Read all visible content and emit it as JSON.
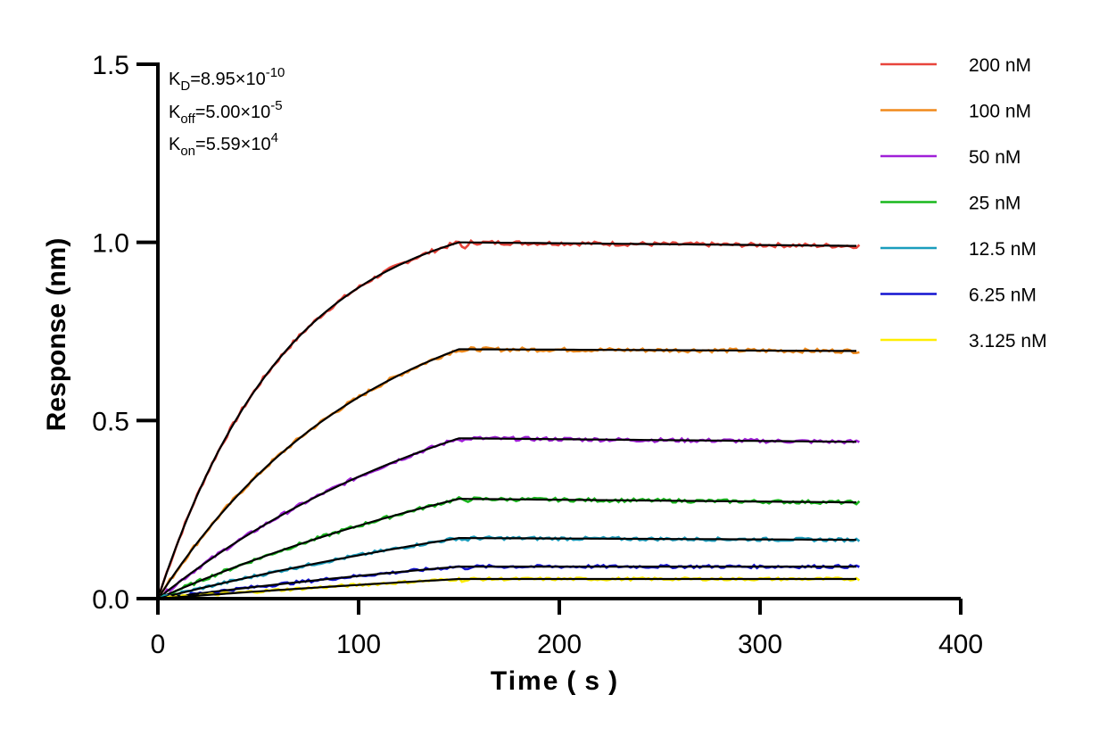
{
  "chart_data": {
    "type": "line",
    "title": "",
    "xlabel": "Time ( s )",
    "ylabel": "Response (nm)",
    "xlim": [
      0,
      400
    ],
    "ylim": [
      0,
      1.5
    ],
    "xticks": [
      0,
      100,
      200,
      300,
      400
    ],
    "yticks": [
      0.0,
      0.5,
      1.0,
      1.5
    ],
    "xtick_labels": [
      "0",
      "100",
      "200",
      "300",
      "400"
    ],
    "ytick_labels": [
      "0.0",
      "0.5",
      "1.0",
      "1.5"
    ],
    "grid": false,
    "legend_position": "right",
    "annotations": {
      "kd": {
        "base": "K",
        "sub": "D",
        "value": "=8.95×10",
        "sup": "-10"
      },
      "koff": {
        "base": "K",
        "sub": "off",
        "value": "=5.00×10",
        "sup": "-5"
      },
      "kon": {
        "base": "K",
        "sub": "on",
        "value": "=5.59×10",
        "sup": "4"
      }
    },
    "association_end": 150,
    "time_end": 350,
    "fit_color": "#000000",
    "series": [
      {
        "name": "200 nM",
        "color": "#e8453c",
        "plateau": 1.0,
        "end": 0.99
      },
      {
        "name": "100 nM",
        "color": "#f08a1c",
        "plateau": 0.7,
        "end": 0.695
      },
      {
        "name": "50 nM",
        "color": "#a020d8",
        "plateau": 0.45,
        "end": 0.44
      },
      {
        "name": "25 nM",
        "color": "#19b81d",
        "plateau": 0.28,
        "end": 0.27
      },
      {
        "name": "12.5 nM",
        "color": "#1a9dbd",
        "plateau": 0.17,
        "end": 0.165
      },
      {
        "name": "6.25 nM",
        "color": "#1414d0",
        "plateau": 0.09,
        "end": 0.09
      },
      {
        "name": "3.125 nM",
        "color": "#ffee00",
        "plateau": 0.055,
        "end": 0.055
      }
    ]
  }
}
